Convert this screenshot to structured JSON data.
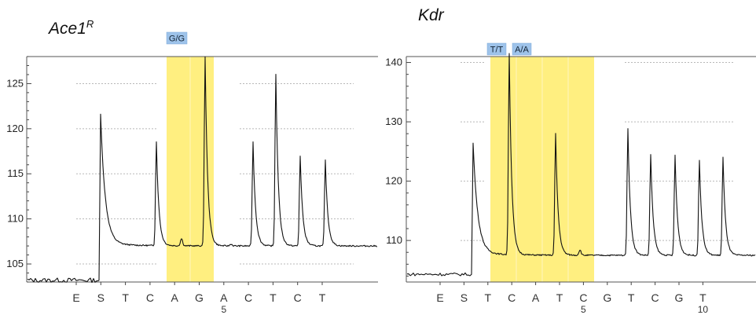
{
  "chart_data": [
    {
      "type": "line",
      "title": "Ace1",
      "title_superscript": "R",
      "ylim": [
        103,
        128
      ],
      "y_ticks": [
        105,
        110,
        115,
        120,
        125
      ],
      "grid": "dotted",
      "highlight_color": "#ffef80",
      "genotype_labels": [
        "G/G"
      ],
      "dispensation": [
        {
          "base": "E",
          "position": ""
        },
        {
          "base": "S",
          "position": ""
        },
        {
          "base": "T",
          "position": ""
        },
        {
          "base": "C",
          "position": ""
        },
        {
          "base": "A",
          "position": ""
        },
        {
          "base": "G",
          "position": ""
        },
        {
          "base": "A",
          "position": "5"
        },
        {
          "base": "C",
          "position": ""
        },
        {
          "base": "T",
          "position": ""
        },
        {
          "base": "C",
          "position": ""
        },
        {
          "base": "T",
          "position": ""
        }
      ],
      "baseline": 103.2,
      "peak_baseline": 107,
      "peaks": [
        {
          "base": "S",
          "value": 121.3
        },
        {
          "base": "C",
          "value": 118.5
        },
        {
          "base": "G",
          "value": 128
        },
        {
          "base": "C",
          "value": 118.5
        },
        {
          "base": "T",
          "value": 126
        },
        {
          "base": "C",
          "value": 117
        },
        {
          "base": "T",
          "value": 116.5
        }
      ]
    },
    {
      "type": "line",
      "title": "Kdr",
      "ylim": [
        103,
        141
      ],
      "y_ticks": [
        110,
        120,
        130,
        140
      ],
      "grid": "dotted",
      "highlight_color": "#ffef80",
      "genotype_labels": [
        "T/T",
        "A/A"
      ],
      "dispensation": [
        {
          "base": "E",
          "position": ""
        },
        {
          "base": "S",
          "position": ""
        },
        {
          "base": "T",
          "position": ""
        },
        {
          "base": "C",
          "position": ""
        },
        {
          "base": "A",
          "position": ""
        },
        {
          "base": "T",
          "position": ""
        },
        {
          "base": "C",
          "position": "5"
        },
        {
          "base": "G",
          "position": ""
        },
        {
          "base": "T",
          "position": ""
        },
        {
          "base": "C",
          "position": ""
        },
        {
          "base": "G",
          "position": ""
        },
        {
          "base": "T",
          "position": "10"
        }
      ],
      "baseline": 104.3,
      "peak_baseline": 107.5,
      "peaks": [
        {
          "base": "S",
          "value": 126
        },
        {
          "base": "T",
          "value": 141.5
        },
        {
          "base": "A",
          "value": 128
        },
        {
          "base": "G",
          "value": 128.8
        },
        {
          "base": "T",
          "value": 124.5
        },
        {
          "base": "C",
          "value": 124.3
        },
        {
          "base": "G",
          "value": 123.5
        },
        {
          "base": "T",
          "value": 124
        }
      ]
    }
  ]
}
